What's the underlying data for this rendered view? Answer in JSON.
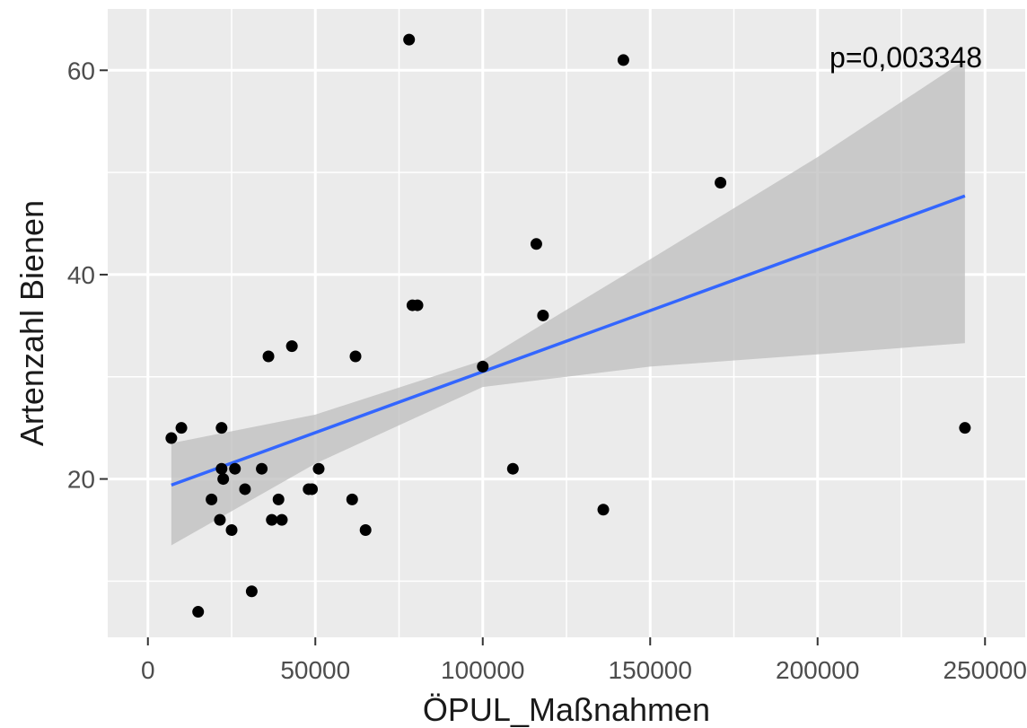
{
  "chart_data": {
    "type": "scatter",
    "title": "",
    "xlabel": "ÖPUL_Maßnahmen",
    "ylabel": "Artenzahl Bienen",
    "xlim": [
      -12000,
      262000
    ],
    "ylim": [
      4.5,
      66
    ],
    "x_ticks": [
      0,
      50000,
      100000,
      150000,
      200000,
      250000
    ],
    "y_ticks": [
      20,
      40,
      60
    ],
    "grid": true,
    "legend": "none",
    "annotation": "p=0,003348",
    "points": [
      {
        "x": 78000,
        "y": 63
      },
      {
        "x": 142000,
        "y": 61
      },
      {
        "x": 171000,
        "y": 49
      },
      {
        "x": 116000,
        "y": 43
      },
      {
        "x": 79000,
        "y": 37
      },
      {
        "x": 80500,
        "y": 37
      },
      {
        "x": 118000,
        "y": 36
      },
      {
        "x": 43000,
        "y": 33
      },
      {
        "x": 36000,
        "y": 32
      },
      {
        "x": 62000,
        "y": 32
      },
      {
        "x": 100000,
        "y": 31
      },
      {
        "x": 7000,
        "y": 24
      },
      {
        "x": 10000,
        "y": 25
      },
      {
        "x": 22000,
        "y": 25
      },
      {
        "x": 244000,
        "y": 25
      },
      {
        "x": 22000,
        "y": 21
      },
      {
        "x": 26000,
        "y": 21
      },
      {
        "x": 34000,
        "y": 21
      },
      {
        "x": 51000,
        "y": 21
      },
      {
        "x": 109000,
        "y": 21
      },
      {
        "x": 22500,
        "y": 20
      },
      {
        "x": 29000,
        "y": 19
      },
      {
        "x": 48000,
        "y": 19
      },
      {
        "x": 49000,
        "y": 19
      },
      {
        "x": 19000,
        "y": 18
      },
      {
        "x": 39000,
        "y": 18
      },
      {
        "x": 61000,
        "y": 18
      },
      {
        "x": 136000,
        "y": 17
      },
      {
        "x": 21500,
        "y": 16
      },
      {
        "x": 37000,
        "y": 16
      },
      {
        "x": 40000,
        "y": 16
      },
      {
        "x": 25000,
        "y": 15
      },
      {
        "x": 65000,
        "y": 15
      },
      {
        "x": 31000,
        "y": 9
      },
      {
        "x": 15000,
        "y": 7
      }
    ],
    "fit": {
      "x": [
        7000,
        244000
      ],
      "y": [
        19.4,
        47.7
      ]
    },
    "confidence_band": {
      "x": [
        7000,
        50000,
        100000,
        150000,
        200000,
        244000
      ],
      "upper": [
        23.5,
        26.3,
        31.6,
        41.5,
        51.5,
        61.0
      ],
      "lower": [
        13.5,
        21.5,
        29.0,
        31.0,
        32.2,
        33.3
      ]
    },
    "colors": {
      "panel": "#ebebeb",
      "grid": "#ffffff",
      "point": "#000000",
      "line": "#3366ff",
      "band": "#bdbdbd",
      "tick_text": "#4d4d4d",
      "axis_text": "#1a1a1a"
    }
  }
}
